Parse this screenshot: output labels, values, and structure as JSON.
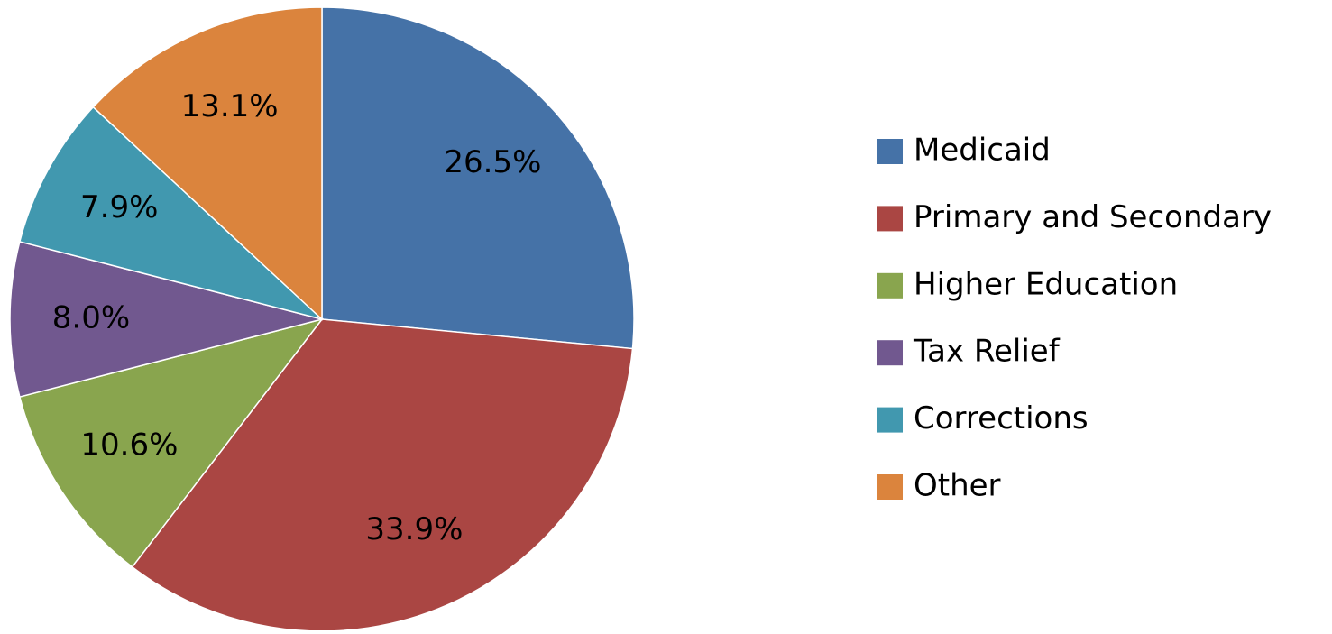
{
  "chart_data": {
    "type": "pie",
    "categories": [
      "Medicaid",
      "Primary and Secondary",
      "Higher Education",
      "Tax Relief",
      "Corrections",
      "Other"
    ],
    "values": [
      26.5,
      33.9,
      10.6,
      8,
      7.9,
      13.1
    ],
    "value_labels": [
      "26.5%",
      "33.9%",
      "10.6%",
      "8.0%",
      "7.9%",
      "13.1%"
    ],
    "colors": [
      "#4572a7",
      "#aa4643",
      "#89a54e",
      "#71588f",
      "#4198af",
      "#db843d"
    ],
    "legend": "right"
  }
}
